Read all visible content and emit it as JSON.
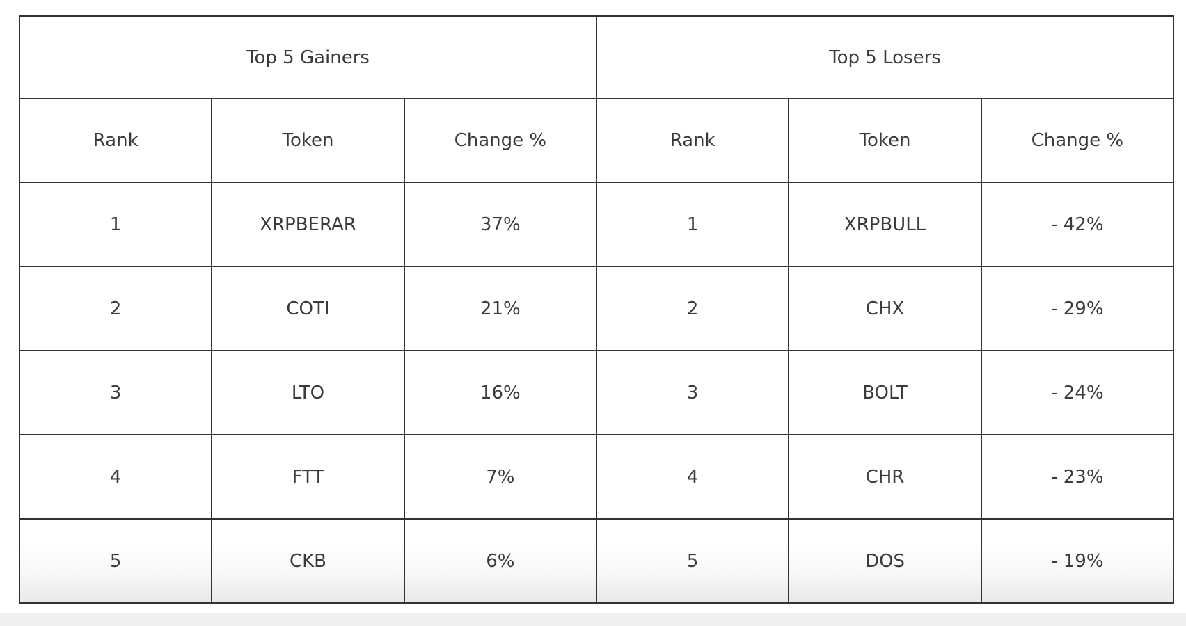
{
  "colors": {
    "border": "#333333",
    "text": "#3b3b3b",
    "bottom_strip": "#efefef",
    "row_fade": "#e9e9e9"
  },
  "gainers": {
    "title": "Top 5 Gainers",
    "headers": {
      "rank": "Rank",
      "token": "Token",
      "change": "Change %"
    },
    "rows": [
      {
        "rank": "1",
        "token": "XRPBERAR",
        "change": "37%"
      },
      {
        "rank": "2",
        "token": "COTI",
        "change": "21%"
      },
      {
        "rank": "3",
        "token": "LTO",
        "change": "16%"
      },
      {
        "rank": "4",
        "token": "FTT",
        "change": "7%"
      },
      {
        "rank": "5",
        "token": "CKB",
        "change": "6%"
      }
    ]
  },
  "losers": {
    "title": "Top 5 Losers",
    "headers": {
      "rank": "Rank",
      "token": "Token",
      "change": "Change %"
    },
    "rows": [
      {
        "rank": "1",
        "token": "XRPBULL",
        "change": "- 42%"
      },
      {
        "rank": "2",
        "token": "CHX",
        "change": "- 29%"
      },
      {
        "rank": "3",
        "token": "BOLT",
        "change": "- 24%"
      },
      {
        "rank": "4",
        "token": "CHR",
        "change": "- 23%"
      },
      {
        "rank": "5",
        "token": "DOS",
        "change": "- 19%"
      }
    ]
  },
  "chart_data": {
    "type": "table",
    "tables": [
      {
        "title": "Top 5 Gainers",
        "columns": [
          "Rank",
          "Token",
          "Change %"
        ],
        "rows": [
          [
            "1",
            "XRPBERAR",
            "37%"
          ],
          [
            "2",
            "COTI",
            "21%"
          ],
          [
            "3",
            "LTO",
            "16%"
          ],
          [
            "4",
            "FTT",
            "7%"
          ],
          [
            "5",
            "CKB",
            "6%"
          ]
        ],
        "values_numeric": [
          37,
          21,
          16,
          7,
          6
        ]
      },
      {
        "title": "Top 5 Losers",
        "columns": [
          "Rank",
          "Token",
          "Change %"
        ],
        "rows": [
          [
            "1",
            "XRPBULL",
            "- 42%"
          ],
          [
            "2",
            "CHX",
            "- 29%"
          ],
          [
            "3",
            "BOLT",
            "- 24%"
          ],
          [
            "4",
            "CHR",
            "- 23%"
          ],
          [
            "5",
            "DOS",
            "- 19%"
          ]
        ],
        "values_numeric": [
          -42,
          -29,
          -24,
          -23,
          -19
        ]
      }
    ]
  }
}
